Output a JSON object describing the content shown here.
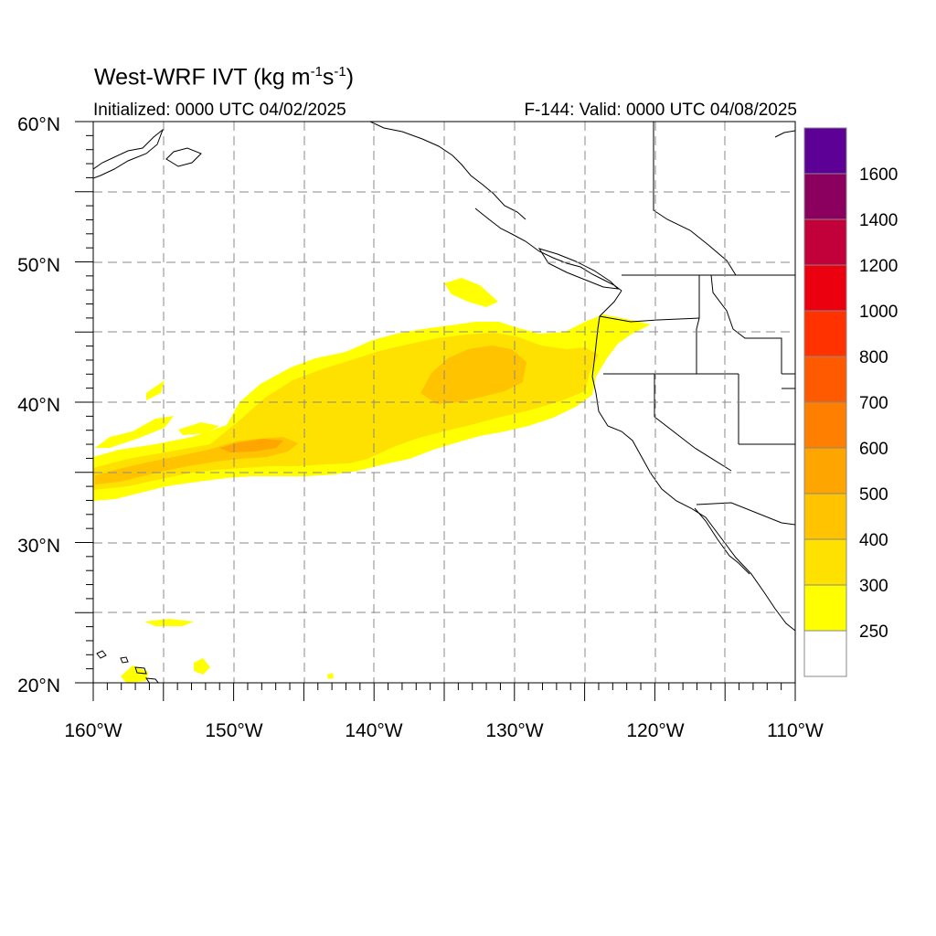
{
  "header": {
    "title_prefix": "West-WRF IVT (kg m",
    "title_exp1": "-1",
    "title_mid": "s",
    "title_exp2": "-1",
    "title_suffix": ")",
    "init_text": "Initialized: 0000 UTC 04/02/2025",
    "valid_text": "F-144: Valid: 0000 UTC 04/08/2025"
  },
  "axes": {
    "lon_range": [
      -160,
      -110
    ],
    "lat_range": [
      20,
      60
    ],
    "lon_ticks": [
      "160°W",
      "150°W",
      "140°W",
      "130°W",
      "120°W",
      "110°W"
    ],
    "lat_ticks": [
      "20°N",
      "30°N",
      "40°N",
      "50°N",
      "60°N"
    ],
    "grid_spacing_deg": 5,
    "grid_style": "dashed"
  },
  "colorbar": {
    "labels": [
      "250",
      "300",
      "400",
      "500",
      "600",
      "700",
      "800",
      "1000",
      "1200",
      "1400",
      "1600"
    ],
    "colors": [
      "#ffffff",
      "#ffff00",
      "#ffe100",
      "#ffc300",
      "#ffa500",
      "#ff8000",
      "#ff5a00",
      "#ff3200",
      "#eb0010",
      "#c2003a",
      "#8b005e",
      "#5c0096"
    ]
  }
}
